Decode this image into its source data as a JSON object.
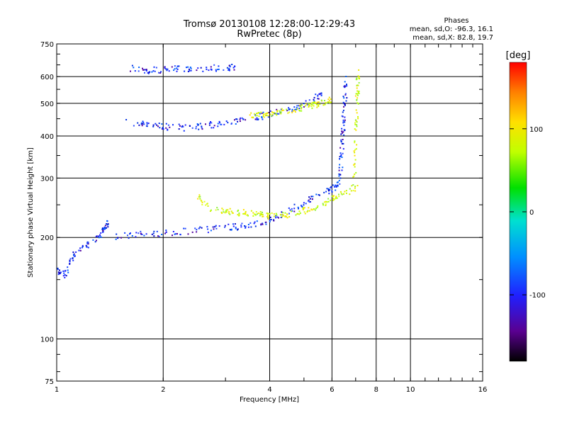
{
  "chart_data": {
    "type": "scatter",
    "title": "Tromsø 20130108 12:28:00-12:29:43",
    "subtitle": "RwPretec (8p)",
    "xlabel": "Frequency [MHz]",
    "ylabel": "Stationary phase Virtual Height [km]",
    "x_scale": "log",
    "y_scale": "log",
    "xlim": [
      1,
      16
    ],
    "ylim": [
      75,
      750
    ],
    "x_ticks": [
      1,
      2,
      4,
      6,
      8,
      10,
      16
    ],
    "y_ticks": [
      75,
      100,
      200,
      300,
      400,
      500,
      600,
      750
    ],
    "grid": true,
    "x_gridlines": [
      2,
      4,
      6,
      8,
      10
    ],
    "y_gridlines": [
      100,
      200,
      300,
      400,
      500,
      600
    ],
    "stats": {
      "heading": "Phases",
      "o_line": "mean, sd,O: -96.3, 16.1",
      "x_line": "mean, sd,X:  82.8, 19.7"
    },
    "colorbar": {
      "label": "[deg]",
      "range": [
        -180,
        180
      ],
      "ticks": [
        100,
        0,
        -100
      ],
      "placement": "right"
    },
    "series": [
      {
        "points_type": "o-mode",
        "phase_mean": -96.3,
        "phase_sd": 16.1,
        "traces": [
          {
            "segment": "F2 upper trace",
            "x": [
              1.55,
              1.8,
              2.0,
              2.3,
              2.6,
              2.9,
              3.3,
              3.8,
              4.3,
              4.8,
              5.3,
              5.6
            ],
            "y": [
              445,
              432,
              428,
              425,
              430,
              438,
              448,
              460,
              475,
              490,
              515,
              545
            ]
          },
          {
            "segment": "F1 lower trace",
            "x": [
              1.45,
              1.7,
              2.0,
              2.4,
              2.8,
              3.2,
              3.6,
              4.0,
              4.5,
              5.0,
              5.5,
              6.0,
              6.3
            ],
            "y": [
              202,
              205,
              207,
              210,
              213,
              216,
              220,
              226,
              240,
              255,
              268,
              280,
              295
            ]
          },
          {
            "segment": "E region cluster",
            "x": [
              1.0,
              1.05,
              1.1,
              1.2,
              1.3,
              1.35,
              1.4
            ],
            "y": [
              160,
              155,
              175,
              190,
              200,
              210,
              230
            ]
          },
          {
            "segment": "top band",
            "x": [
              1.6,
              1.8,
              2.0,
              2.2,
              2.6,
              3.0,
              3.2
            ],
            "y": [
              640,
              628,
              632,
              635,
              638,
              640,
              642
            ]
          },
          {
            "segment": "cusp near 6.5 MHz",
            "x": [
              6.3,
              6.35,
              6.4,
              6.45,
              6.5,
              6.55
            ],
            "y": [
              300,
              350,
              400,
              450,
              520,
              600
            ]
          }
        ]
      },
      {
        "points_type": "x-mode",
        "phase_mean": 82.8,
        "phase_sd": 19.7,
        "traces": [
          {
            "segment": "F1 x trace",
            "x": [
              2.5,
              2.7,
              3.0,
              3.3,
              3.6,
              3.9,
              4.2,
              4.5,
              5.0,
              5.5,
              6.0,
              6.5,
              7.0
            ],
            "y": [
              265,
              245,
              240,
              238,
              236,
              233,
              232,
              235,
              242,
              250,
              262,
              272,
              285
            ]
          },
          {
            "segment": "F2 x trace",
            "x": [
              3.5,
              3.8,
              4.1,
              4.5,
              5.0,
              5.3,
              5.6,
              5.9
            ],
            "y": [
              460,
              465,
              470,
              478,
              488,
              495,
              505,
              512
            ]
          },
          {
            "segment": "x cusp near 7 MHz",
            "x": [
              6.9,
              6.95,
              7.0,
              7.05,
              7.1
            ],
            "y": [
              300,
              380,
              460,
              550,
              630
            ]
          }
        ]
      }
    ]
  }
}
